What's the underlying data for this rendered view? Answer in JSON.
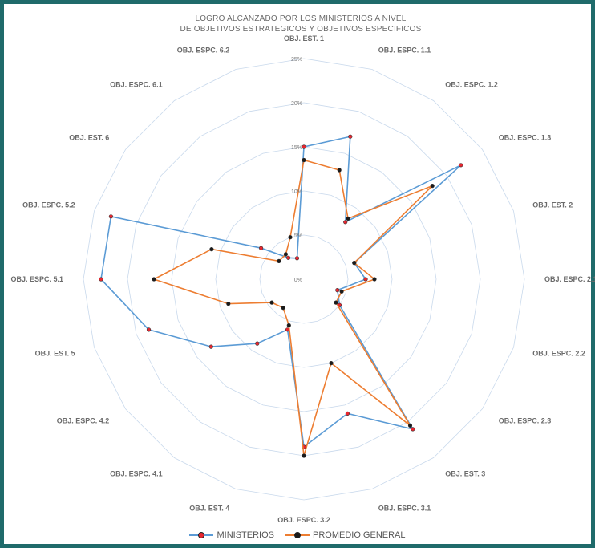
{
  "title_lines": [
    "LOGRO ALCANZADO POR LOS MINISTERIOS A NIVEL",
    "DE OBJETIVOS ESTRATEGICOS Y OBJETIVOS ESPECIFICOS"
  ],
  "chart_data": {
    "type": "radar",
    "title": "LOGRO ALCANZADO POR LOS MINISTERIOS A NIVEL DE OBJETIVOS ESTRATEGICOS Y OBJETIVOS ESPECIFICOS",
    "categories": [
      "OBJ. EST. 1",
      "OBJ. ESPC. 1.1",
      "OBJ. ESPC. 1.2",
      "OBJ. ESPC. 1.3",
      "OBJ. EST. 2",
      "OBJ. ESPC. 2.1",
      "OBJ. ESPC. 2.2",
      "OBJ. ESPC. 2.3",
      "OBJ. EST. 3",
      "OBJ. ESPC. 3.1",
      "OBJ. ESPC. 3.2",
      "OBJ. EST. 4",
      "OBJ. ESPC. 4.1",
      "OBJ. ESPC. 4.2",
      "OBJ. EST. 5",
      "OBJ. ESPC. 5.1",
      "OBJ. ESPC. 5.2",
      "OBJ. EST. 6",
      "OBJ. ESPC. 6.1",
      "OBJ. ESPC. 6.2"
    ],
    "tick_labels": [
      "0%",
      "5%",
      "10%",
      "15%",
      "20%",
      "25%"
    ],
    "ylim": [
      0,
      25
    ],
    "series": [
      {
        "name": "MINISTERIOS",
        "color": "#5b9bd5",
        "marker_color": "#e8262f",
        "values": [
          15,
          17,
          8,
          22,
          6,
          7,
          4,
          5,
          21,
          16,
          19,
          6,
          9,
          13,
          18.5,
          23,
          23,
          6,
          3,
          2.5
        ]
      },
      {
        "name": "PROMEDIO GENERAL",
        "color": "#ed7d31",
        "marker_color": "#1a1a1a",
        "values": [
          13.5,
          13,
          8.5,
          18,
          6,
          8,
          4.5,
          4.5,
          20.5,
          10,
          20,
          5.5,
          4,
          4.5,
          9,
          17,
          11,
          3.5,
          3.5,
          5
        ]
      }
    ],
    "grid": true,
    "legend_position": "bottom"
  }
}
